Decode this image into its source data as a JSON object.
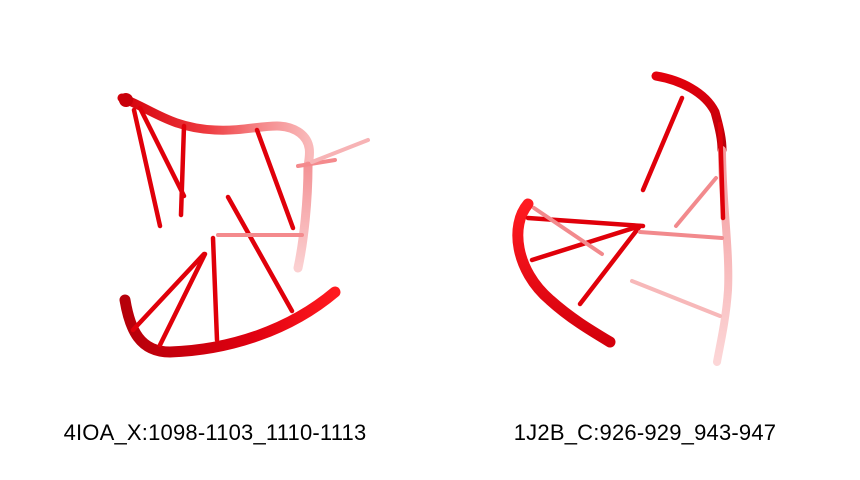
{
  "panels": [
    {
      "caption": "4IOA_X:1098-1103_1110-1113",
      "color": "#e0000a"
    },
    {
      "caption": "1J2B_C:926-929_943-947",
      "color": "#e0000a"
    }
  ]
}
